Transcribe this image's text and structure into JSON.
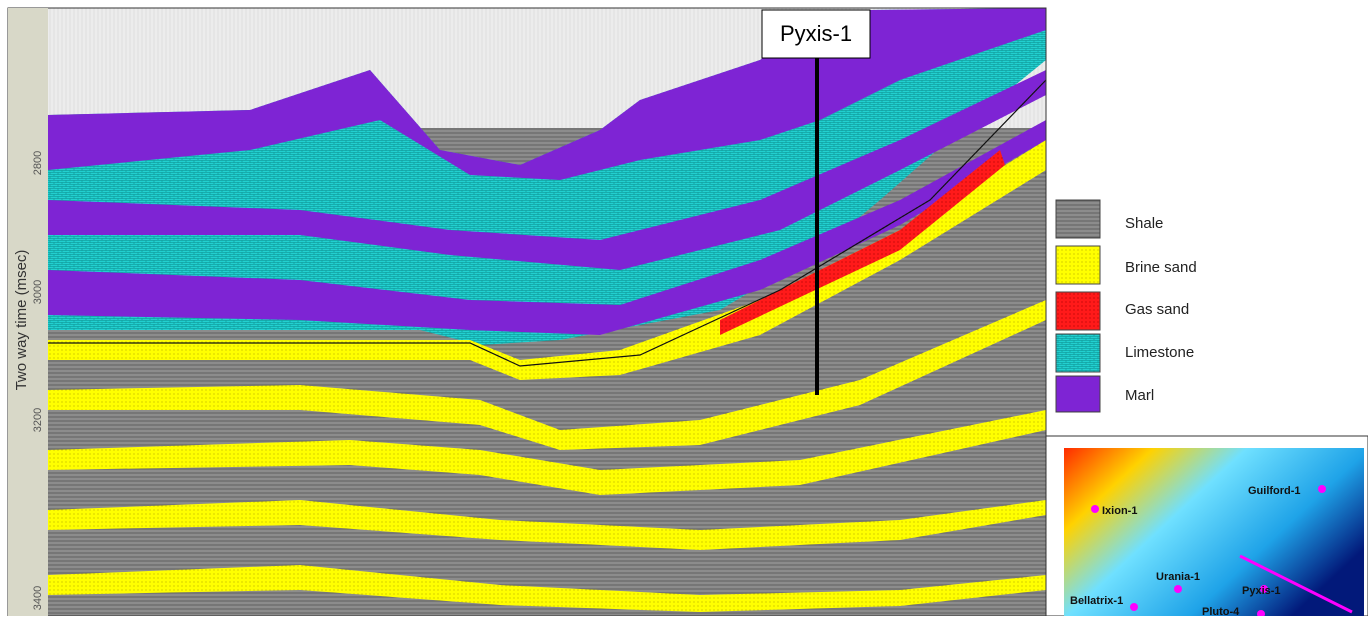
{
  "section": {
    "axis_label": "Two way time (msec)",
    "ticks": [
      "2800",
      "3000",
      "3200",
      "3400"
    ],
    "well_label": "Pyxis-1"
  },
  "legend": [
    "Shale",
    "Brine sand",
    "Gas sand",
    "Limestone",
    "Marl"
  ],
  "map": {
    "wells": [
      "Ixion-1",
      "Guilford-1",
      "Urania-1",
      "Pyxis-1",
      "Bellatrix-1",
      "Pluto-4"
    ]
  }
}
